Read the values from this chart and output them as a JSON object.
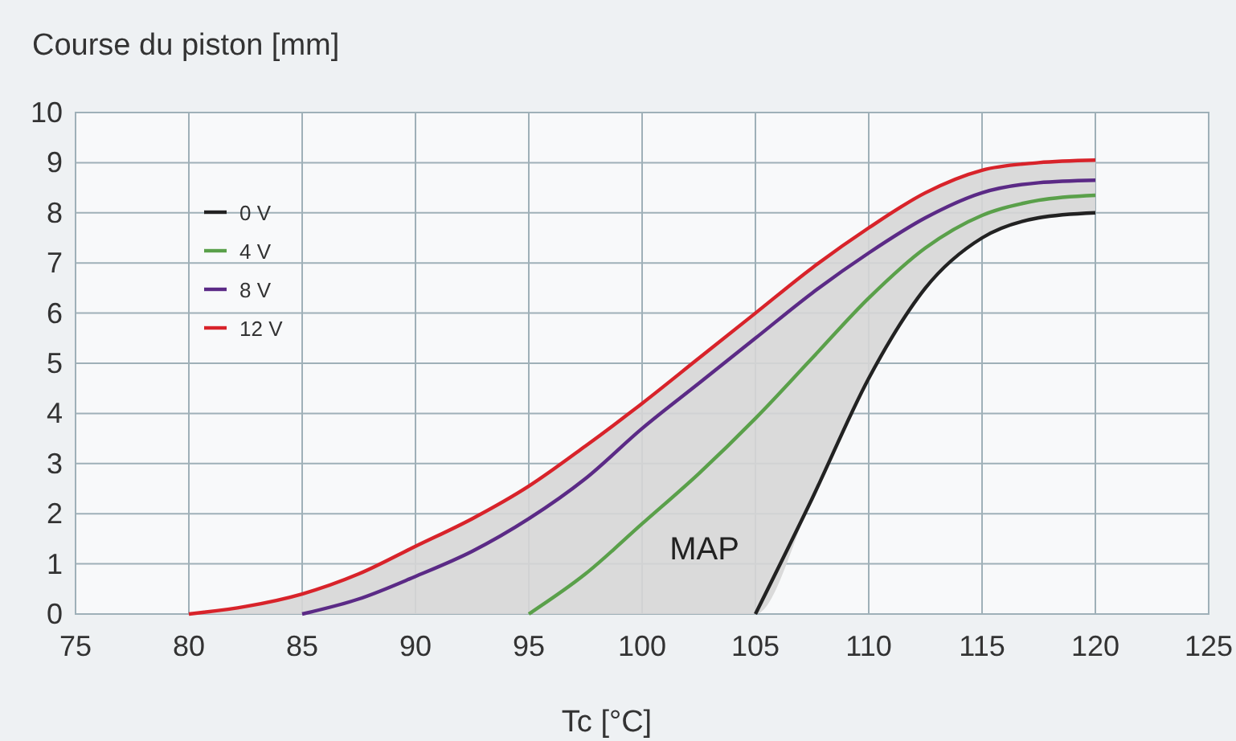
{
  "chart_data": {
    "type": "line",
    "ylabel": "Course du piston [mm]",
    "xlabel": "Tc [°C]",
    "xlim": [
      75,
      125
    ],
    "xticks": [
      75,
      80,
      85,
      90,
      95,
      100,
      105,
      110,
      115,
      120,
      125
    ],
    "ylim": [
      0,
      10
    ],
    "yticks": [
      0,
      1,
      2,
      3,
      4,
      5,
      6,
      7,
      8,
      9,
      10
    ],
    "grid": true,
    "legend": "top left",
    "marker": "none",
    "line_style": "solid",
    "annotations": [
      "MAP"
    ],
    "series": [
      {
        "name": "0 V",
        "color": "#222222",
        "x": [
          105,
          107.5,
          110,
          111,
          112.5,
          115,
          117.5,
          120
        ],
        "values": [
          0,
          2.3,
          4.7,
          5.5,
          6.5,
          7.5,
          7.9,
          8.0
        ]
      },
      {
        "name": "4 V",
        "color": "#5aa04a",
        "x": [
          95,
          97.5,
          100,
          102.5,
          105,
          107.5,
          110,
          112.5,
          115,
          117.5,
          120
        ],
        "values": [
          0,
          0.8,
          1.8,
          2.8,
          3.9,
          5.1,
          6.3,
          7.3,
          7.95,
          8.25,
          8.35
        ]
      },
      {
        "name": "8 V",
        "color": "#5b2a86",
        "x": [
          85,
          87.5,
          90,
          92.5,
          95,
          97.5,
          100,
          102.5,
          105,
          107.5,
          110,
          112.5,
          115,
          117.5,
          120
        ],
        "values": [
          0,
          0.3,
          0.75,
          1.25,
          1.9,
          2.7,
          3.7,
          4.6,
          5.5,
          6.4,
          7.2,
          7.9,
          8.4,
          8.6,
          8.65
        ]
      },
      {
        "name": "12 V",
        "color": "#d8232a",
        "x": [
          80,
          82.5,
          85,
          87.5,
          90,
          92.5,
          95,
          97.5,
          100,
          102.5,
          105,
          107.5,
          110,
          112.5,
          115,
          117.5,
          120
        ],
        "values": [
          0,
          0.15,
          0.4,
          0.8,
          1.35,
          1.9,
          2.55,
          3.35,
          4.2,
          5.1,
          6.0,
          6.9,
          7.7,
          8.4,
          8.85,
          9.0,
          9.05
        ],
        "lower": [
          0,
          0,
          0,
          0,
          0,
          0,
          0,
          0,
          0,
          0,
          0,
          2.3,
          4.7,
          6.5,
          7.5,
          7.9,
          8.0
        ],
        "upper": [
          0,
          0.15,
          0.4,
          0.8,
          1.35,
          1.9,
          2.55,
          3.35,
          4.2,
          5.1,
          6.0,
          6.9,
          7.7,
          8.4,
          8.85,
          9.0,
          9.05
        ]
      }
    ]
  }
}
